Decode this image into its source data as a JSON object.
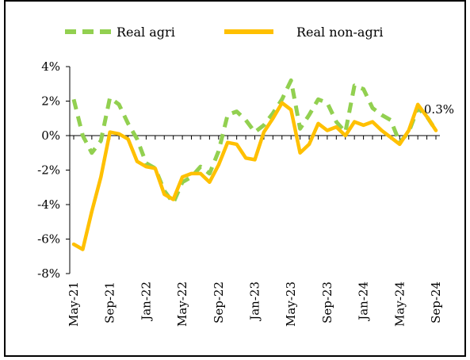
{
  "colors": {
    "agri": "#92D050",
    "non_agri": "#FFC000",
    "axis": "#000000",
    "border": "#000000"
  },
  "chart_data": {
    "type": "line",
    "title": "",
    "xlabel": "",
    "ylabel": "",
    "ylim": [
      -8,
      4
    ],
    "y_ticks": [
      4,
      2,
      0,
      -2,
      -4,
      -6,
      -8
    ],
    "y_tick_labels": [
      "4%",
      "2%",
      "0%",
      "-2%",
      "-4%",
      "-6%",
      "-8%"
    ],
    "x_tick_labels": [
      "May-21",
      "Sep-21",
      "Jan-22",
      "May-22",
      "Sep-22",
      "Jan-23",
      "May-23",
      "Sep-23",
      "Jan-24",
      "May-24",
      "Sep-24"
    ],
    "x": [
      "May-21",
      "Jun-21",
      "Jul-21",
      "Aug-21",
      "Sep-21",
      "Oct-21",
      "Nov-21",
      "Dec-21",
      "Jan-22",
      "Feb-22",
      "Mar-22",
      "Apr-22",
      "May-22",
      "Jun-22",
      "Jul-22",
      "Aug-22",
      "Sep-22",
      "Oct-22",
      "Nov-22",
      "Dec-22",
      "Jan-23",
      "Feb-23",
      "Mar-23",
      "Apr-23",
      "May-23",
      "Jun-23",
      "Jul-23",
      "Aug-23",
      "Sep-23",
      "Oct-23",
      "Nov-23",
      "Dec-23",
      "Jan-24",
      "Feb-24",
      "Mar-24",
      "Apr-24",
      "May-24",
      "Jun-24",
      "Jul-24",
      "Aug-24",
      "Sep-24"
    ],
    "series": [
      {
        "name": "Real agri",
        "style": "dashed",
        "values": [
          2.1,
          0.0,
          -1.0,
          -0.3,
          2.2,
          1.8,
          0.7,
          -0.2,
          -1.6,
          -1.9,
          -3.2,
          -3.9,
          -2.7,
          -2.4,
          -1.8,
          -2.2,
          -0.9,
          1.2,
          1.4,
          0.9,
          0.2,
          0.6,
          1.3,
          2.1,
          3.2,
          0.4,
          1.2,
          2.1,
          1.9,
          0.8,
          0.2,
          2.9,
          2.7,
          1.6,
          1.2,
          0.9,
          -0.4,
          0.2,
          1.6,
          1.1,
          0.3
        ]
      },
      {
        "name": "Real non-agri",
        "style": "solid",
        "values": [
          -6.3,
          -6.6,
          -4.4,
          -2.4,
          0.2,
          0.1,
          -0.2,
          -1.5,
          -1.8,
          -1.9,
          -3.4,
          -3.7,
          -2.4,
          -2.2,
          -2.2,
          -2.7,
          -1.7,
          -0.4,
          -0.5,
          -1.3,
          -1.4,
          0.2,
          1.0,
          1.9,
          1.5,
          -1.0,
          -0.5,
          0.7,
          0.3,
          0.5,
          0.0,
          0.8,
          0.6,
          0.8,
          0.3,
          -0.1,
          -0.5,
          0.3,
          1.8,
          1.1,
          0.3
        ]
      }
    ],
    "legend": {
      "position": "top",
      "entries": [
        "Real agri",
        "Real non-agri"
      ]
    },
    "annotations": [
      {
        "series": "Real non-agri",
        "point": "Sep-24",
        "text": "0.3%"
      }
    ],
    "grid": false
  }
}
